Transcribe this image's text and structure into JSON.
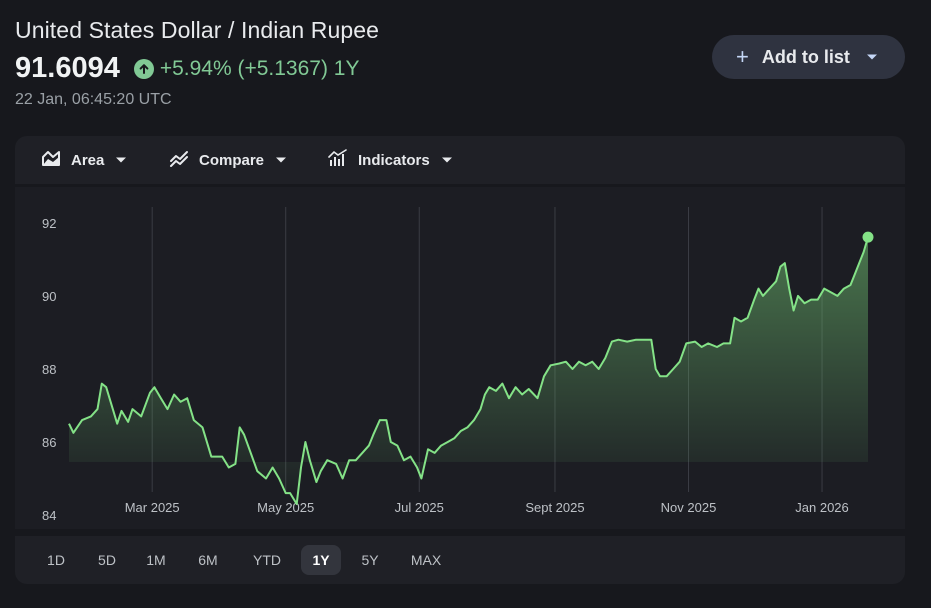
{
  "header": {
    "title": "United States Dollar / Indian Rupee",
    "price": "91.6094",
    "change": "+5.94% (+5.1367) 1Y",
    "timestamp": "22 Jan, 06:45:20 UTC",
    "add_button_label": "Add to list"
  },
  "toolbar": {
    "area_label": "Area",
    "compare_label": "Compare",
    "indicators_label": "Indicators"
  },
  "ranges": [
    "1D",
    "5D",
    "1M",
    "6M",
    "YTD",
    "1Y",
    "5Y",
    "MAX"
  ],
  "active_range": "1Y",
  "colors": {
    "positive": "#81c995",
    "line": "#84e287",
    "background": "#17181d"
  },
  "chart_data": {
    "type": "area",
    "x_labels": [
      "Mar 2025",
      "May 2025",
      "Jul 2025",
      "Sept 2025",
      "Nov 2025",
      "Jan 2026"
    ],
    "y_ticks": [
      84,
      86,
      88,
      90,
      92
    ],
    "ylim": [
      84,
      92.6
    ],
    "xlim": [
      "2025-01-22",
      "2026-01-22"
    ],
    "grid": "vertical",
    "series": [
      {
        "values": [
          [
            "2025-01-22",
            86.5
          ],
          [
            "2025-01-24",
            86.25
          ],
          [
            "2025-01-28",
            86.6
          ],
          [
            "2025-02-01",
            86.7
          ],
          [
            "2025-02-04",
            86.9
          ],
          [
            "2025-02-06",
            87.6
          ],
          [
            "2025-02-08",
            87.5
          ],
          [
            "2025-02-11",
            86.9
          ],
          [
            "2025-02-13",
            86.5
          ],
          [
            "2025-02-15",
            86.85
          ],
          [
            "2025-02-18",
            86.55
          ],
          [
            "2025-02-20",
            86.9
          ],
          [
            "2025-02-24",
            86.7
          ],
          [
            "2025-02-28",
            87.35
          ],
          [
            "2025-03-02",
            87.5
          ],
          [
            "2025-03-05",
            87.2
          ],
          [
            "2025-03-08",
            86.9
          ],
          [
            "2025-03-11",
            87.3
          ],
          [
            "2025-03-14",
            87.1
          ],
          [
            "2025-03-17",
            87.2
          ],
          [
            "2025-03-20",
            86.6
          ],
          [
            "2025-03-24",
            86.4
          ],
          [
            "2025-03-28",
            85.6
          ],
          [
            "2025-04-02",
            85.6
          ],
          [
            "2025-04-05",
            85.3
          ],
          [
            "2025-04-08",
            85.4
          ],
          [
            "2025-04-10",
            86.4
          ],
          [
            "2025-04-12",
            86.2
          ],
          [
            "2025-04-15",
            85.7
          ],
          [
            "2025-04-18",
            85.2
          ],
          [
            "2025-04-22",
            85.0
          ],
          [
            "2025-04-25",
            85.3
          ],
          [
            "2025-04-28",
            85.0
          ],
          [
            "2025-05-01",
            84.6
          ],
          [
            "2025-05-03",
            84.6
          ],
          [
            "2025-05-06",
            84.3
          ],
          [
            "2025-05-08",
            85.3
          ],
          [
            "2025-05-10",
            86.0
          ],
          [
            "2025-05-12",
            85.5
          ],
          [
            "2025-05-15",
            84.9
          ],
          [
            "2025-05-17",
            85.2
          ],
          [
            "2025-05-20",
            85.5
          ],
          [
            "2025-05-24",
            85.4
          ],
          [
            "2025-05-27",
            85.0
          ],
          [
            "2025-05-30",
            85.5
          ],
          [
            "2025-06-02",
            85.5
          ],
          [
            "2025-06-05",
            85.7
          ],
          [
            "2025-06-08",
            85.9
          ],
          [
            "2025-06-10",
            86.2
          ],
          [
            "2025-06-13",
            86.6
          ],
          [
            "2025-06-16",
            86.6
          ],
          [
            "2025-06-18",
            86.0
          ],
          [
            "2025-06-21",
            85.9
          ],
          [
            "2025-06-24",
            85.5
          ],
          [
            "2025-06-27",
            85.6
          ],
          [
            "2025-06-30",
            85.3
          ],
          [
            "2025-07-02",
            85.0
          ],
          [
            "2025-07-05",
            85.8
          ],
          [
            "2025-07-08",
            85.7
          ],
          [
            "2025-07-11",
            85.9
          ],
          [
            "2025-07-14",
            86.0
          ],
          [
            "2025-07-17",
            86.1
          ],
          [
            "2025-07-20",
            86.3
          ],
          [
            "2025-07-23",
            86.4
          ],
          [
            "2025-07-26",
            86.6
          ],
          [
            "2025-07-29",
            86.9
          ],
          [
            "2025-07-31",
            87.3
          ],
          [
            "2025-08-02",
            87.5
          ],
          [
            "2025-08-05",
            87.4
          ],
          [
            "2025-08-08",
            87.6
          ],
          [
            "2025-08-11",
            87.2
          ],
          [
            "2025-08-14",
            87.5
          ],
          [
            "2025-08-17",
            87.3
          ],
          [
            "2025-08-20",
            87.45
          ],
          [
            "2025-08-24",
            87.2
          ],
          [
            "2025-08-27",
            87.8
          ],
          [
            "2025-08-30",
            88.1
          ],
          [
            "2025-09-03",
            88.15
          ],
          [
            "2025-09-06",
            88.2
          ],
          [
            "2025-09-09",
            88.0
          ],
          [
            "2025-09-12",
            88.2
          ],
          [
            "2025-09-15",
            88.1
          ],
          [
            "2025-09-18",
            88.2
          ],
          [
            "2025-09-21",
            88.0
          ],
          [
            "2025-09-24",
            88.3
          ],
          [
            "2025-09-27",
            88.75
          ],
          [
            "2025-09-30",
            88.8
          ],
          [
            "2025-10-04",
            88.75
          ],
          [
            "2025-10-08",
            88.8
          ],
          [
            "2025-10-12",
            88.8
          ],
          [
            "2025-10-15",
            88.8
          ],
          [
            "2025-10-17",
            88.0
          ],
          [
            "2025-10-19",
            87.8
          ],
          [
            "2025-10-22",
            87.8
          ],
          [
            "2025-10-25",
            88.0
          ],
          [
            "2025-10-28",
            88.2
          ],
          [
            "2025-10-31",
            88.7
          ],
          [
            "2025-11-04",
            88.75
          ],
          [
            "2025-11-07",
            88.6
          ],
          [
            "2025-11-10",
            88.7
          ],
          [
            "2025-11-14",
            88.6
          ],
          [
            "2025-11-17",
            88.7
          ],
          [
            "2025-11-20",
            88.7
          ],
          [
            "2025-11-22",
            89.4
          ],
          [
            "2025-11-25",
            89.3
          ],
          [
            "2025-11-28",
            89.4
          ],
          [
            "2025-12-01",
            89.9
          ],
          [
            "2025-12-03",
            90.2
          ],
          [
            "2025-12-05",
            90.0
          ],
          [
            "2025-12-08",
            90.2
          ],
          [
            "2025-12-11",
            90.4
          ],
          [
            "2025-12-13",
            90.8
          ],
          [
            "2025-12-15",
            90.9
          ],
          [
            "2025-12-17",
            90.2
          ],
          [
            "2025-12-19",
            89.6
          ],
          [
            "2025-12-21",
            90.0
          ],
          [
            "2025-12-24",
            89.8
          ],
          [
            "2025-12-27",
            89.9
          ],
          [
            "2025-12-30",
            89.9
          ],
          [
            "2026-01-02",
            90.2
          ],
          [
            "2026-01-05",
            90.1
          ],
          [
            "2026-01-08",
            90.0
          ],
          [
            "2026-01-11",
            90.2
          ],
          [
            "2026-01-14",
            90.3
          ],
          [
            "2026-01-16",
            90.6
          ],
          [
            "2026-01-18",
            90.9
          ],
          [
            "2026-01-20",
            91.2
          ],
          [
            "2026-01-22",
            91.6094
          ]
        ]
      }
    ]
  }
}
